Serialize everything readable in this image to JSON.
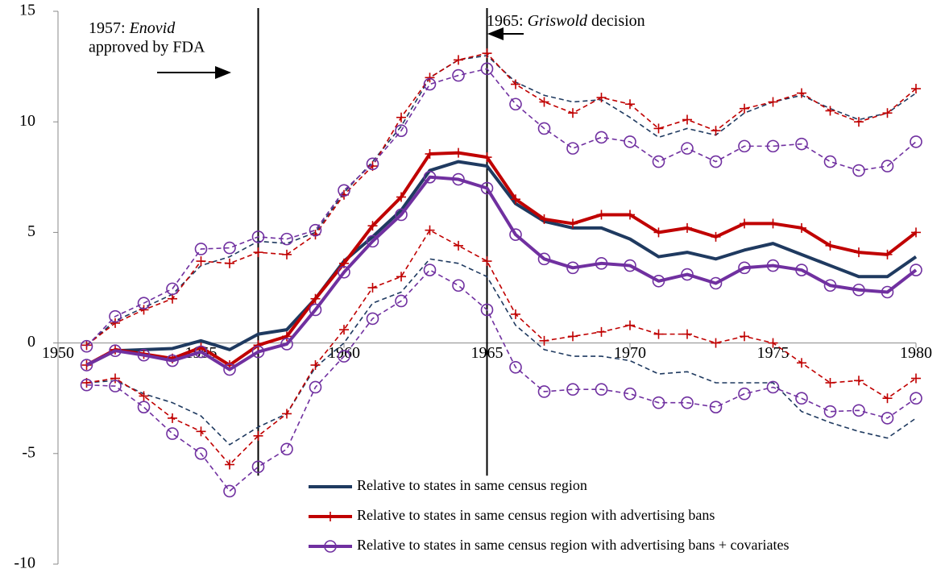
{
  "chart_data": {
    "type": "line",
    "x": [
      1951,
      1952,
      1953,
      1954,
      1955,
      1956,
      1957,
      1958,
      1959,
      1960,
      1961,
      1962,
      1963,
      1964,
      1965,
      1966,
      1967,
      1968,
      1969,
      1970,
      1971,
      1972,
      1973,
      1974,
      1975,
      1976,
      1977,
      1978,
      1979,
      1980
    ],
    "xlim": [
      1950,
      1980
    ],
    "xticks": [
      1950,
      1955,
      1960,
      1965,
      1970,
      1975,
      1980
    ],
    "ylim": [
      -10,
      15
    ],
    "yticks": [
      -10,
      -5,
      0,
      5,
      10,
      15
    ],
    "series": [
      {
        "name": "Relative to states in same census region",
        "color": "#1f3a60",
        "style": "solid",
        "marker": "none",
        "values": [
          -1.0,
          -0.35,
          -0.3,
          -0.25,
          0.1,
          -0.3,
          0.4,
          0.6,
          2.0,
          3.7,
          4.8,
          6.0,
          7.8,
          8.2,
          8.0,
          6.3,
          5.5,
          5.2,
          5.2,
          4.7,
          3.9,
          4.1,
          3.8,
          4.2,
          4.5,
          4.0,
          3.5,
          3.0,
          3.0,
          3.9
        ]
      },
      {
        "name": "Relative to states in same census region with advertising bans",
        "color": "#c00000",
        "style": "solid",
        "marker": "plus",
        "values": [
          -1.0,
          -0.3,
          -0.5,
          -0.7,
          -0.2,
          -1.0,
          -0.1,
          0.3,
          2.0,
          3.6,
          5.3,
          6.6,
          8.55,
          8.6,
          8.4,
          6.5,
          5.6,
          5.4,
          5.8,
          5.8,
          5.0,
          5.2,
          4.8,
          5.4,
          5.4,
          5.2,
          4.4,
          4.1,
          4.0,
          5.0
        ]
      },
      {
        "name": "Relative to states in same census region with advertising bans + covariates",
        "color": "#7030a0",
        "style": "solid",
        "marker": "circle",
        "values": [
          -1.0,
          -0.35,
          -0.55,
          -0.8,
          -0.4,
          -1.2,
          -0.4,
          -0.05,
          1.5,
          3.2,
          4.6,
          5.8,
          7.5,
          7.4,
          7.0,
          4.9,
          3.8,
          3.4,
          3.6,
          3.5,
          2.8,
          3.1,
          2.7,
          3.4,
          3.5,
          3.3,
          2.6,
          2.4,
          2.3,
          3.3
        ]
      },
      {
        "color": "#1f3a60",
        "style": "dashed",
        "marker": "none",
        "values": [
          -0.1,
          1.0,
          1.6,
          2.2,
          3.5,
          3.9,
          4.6,
          4.5,
          5.0,
          6.8,
          8.2,
          9.8,
          12.0,
          12.8,
          13.0,
          11.8,
          11.2,
          10.9,
          11.0,
          10.2,
          9.3,
          9.7,
          9.4,
          10.4,
          10.9,
          11.2,
          10.6,
          10.1,
          10.4,
          11.3
        ]
      },
      {
        "color": "#1f3a60",
        "style": "dashed",
        "marker": "none",
        "values": [
          -1.8,
          -1.7,
          -2.3,
          -2.7,
          -3.3,
          -4.6,
          -3.8,
          -3.2,
          -1.1,
          0.0,
          1.8,
          2.3,
          3.8,
          3.6,
          3.0,
          0.8,
          -0.3,
          -0.6,
          -0.6,
          -0.8,
          -1.4,
          -1.3,
          -1.8,
          -1.8,
          -1.8,
          -3.1,
          -3.6,
          -4.0,
          -4.3,
          -3.4
        ]
      },
      {
        "color": "#c00000",
        "style": "dashed",
        "marker": "plus",
        "values": [
          -0.1,
          0.9,
          1.5,
          2.0,
          3.7,
          3.6,
          4.1,
          4.0,
          4.9,
          6.7,
          8.0,
          10.2,
          12.0,
          12.8,
          13.1,
          11.7,
          10.9,
          10.4,
          11.1,
          10.8,
          9.7,
          10.1,
          9.6,
          10.6,
          10.9,
          11.3,
          10.5,
          10.0,
          10.4,
          11.5
        ]
      },
      {
        "color": "#c00000",
        "style": "dashed",
        "marker": "plus",
        "values": [
          -1.8,
          -1.6,
          -2.4,
          -3.4,
          -4.0,
          -5.5,
          -4.2,
          -3.2,
          -1.0,
          0.6,
          2.5,
          3.0,
          5.1,
          4.4,
          3.7,
          1.3,
          0.1,
          0.3,
          0.5,
          0.8,
          0.4,
          0.4,
          0.0,
          0.3,
          0.0,
          -0.9,
          -1.8,
          -1.7,
          -2.5,
          -1.6
        ]
      },
      {
        "color": "#7030a0",
        "style": "dashed",
        "marker": "circle",
        "values": [
          -0.15,
          1.2,
          1.8,
          2.45,
          4.25,
          4.3,
          4.8,
          4.7,
          5.1,
          6.9,
          8.1,
          9.6,
          11.7,
          12.1,
          12.4,
          10.8,
          9.7,
          8.8,
          9.3,
          9.1,
          8.2,
          8.8,
          8.2,
          8.9,
          8.9,
          9.0,
          8.2,
          7.8,
          8.0,
          9.1
        ]
      },
      {
        "color": "#7030a0",
        "style": "dashed",
        "marker": "circle",
        "values": [
          -1.9,
          -1.95,
          -2.9,
          -4.1,
          -5.0,
          -6.7,
          -5.6,
          -4.8,
          -2.0,
          -0.6,
          1.1,
          1.9,
          3.3,
          2.6,
          1.5,
          -1.1,
          -2.2,
          -2.1,
          -2.1,
          -2.3,
          -2.7,
          -2.7,
          -2.9,
          -2.3,
          -2.0,
          -2.5,
          -3.1,
          -3.05,
          -3.4,
          -2.5
        ]
      }
    ],
    "annotations": [
      {
        "x": 1957,
        "lead": "1957: ",
        "italic": "Enovid",
        "rest": "approved by FDA"
      },
      {
        "x": 1965,
        "lead": "1965: ",
        "italic": "Griswold",
        "rest": " decision"
      }
    ]
  }
}
